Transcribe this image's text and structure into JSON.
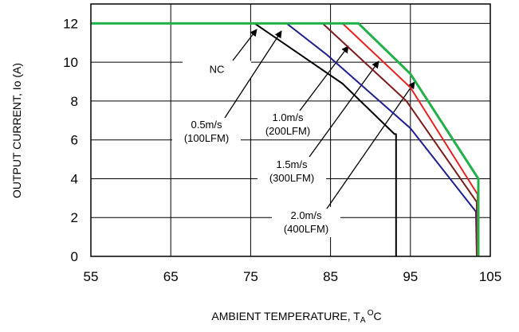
{
  "chart_data": {
    "type": "line",
    "xlabel": "AMBIENT TEMPERATURE, TA OC",
    "ylabel": "OUTPUT CURRENT, Io (A)",
    "xlim": [
      55,
      105
    ],
    "ylim": [
      0,
      13
    ],
    "x_ticks": [
      "55",
      "65",
      "75",
      "85",
      "95",
      "105"
    ],
    "y_ticks": [
      "0",
      "2",
      "4",
      "6",
      "8",
      "10",
      "12"
    ],
    "grid": true,
    "series": [
      {
        "name": "NC",
        "color": "#000000",
        "x": [
          55,
          75.5,
          86.5,
          93,
          93.2,
          93.2
        ],
        "y": [
          12,
          12,
          8.9,
          6.3,
          6.3,
          0
        ]
      },
      {
        "name": "0.5m/s (100LFM)",
        "color": "#1f1f8f",
        "x": [
          55,
          79.5,
          84.5,
          95,
          103.2,
          103.3
        ],
        "y": [
          12,
          12,
          10.4,
          6.6,
          2.3,
          0
        ]
      },
      {
        "name": "1.0m/s (200LFM)",
        "color": "#7b1c1c",
        "x": [
          55,
          84,
          94.5,
          103.3,
          103.3
        ],
        "y": [
          12,
          12,
          8.0,
          2.8,
          0
        ]
      },
      {
        "name": "1.5m/s (300LFM)",
        "color": "#e52222",
        "x": [
          55,
          86.5,
          95,
          103.4,
          103.4
        ],
        "y": [
          12,
          12,
          8.7,
          3.2,
          0
        ]
      },
      {
        "name": "2.0m/s (400LFM)",
        "color": "#22b04a",
        "x": [
          55,
          88.5,
          95,
          103.5,
          103.5
        ],
        "y": [
          12,
          12,
          9.4,
          4.0,
          0
        ]
      }
    ],
    "annotations": [
      {
        "lines": [
          "NC"
        ],
        "series": 0
      },
      {
        "lines": [
          "0.5m/s",
          "(100LFM)"
        ],
        "series": 1
      },
      {
        "lines": [
          "1.0m/s",
          "(200LFM)"
        ],
        "series": 2
      },
      {
        "lines": [
          "1.5m/s",
          "(300LFM)"
        ],
        "series": 3
      },
      {
        "lines": [
          "2.0m/s",
          "(400LFM)"
        ],
        "series": 4
      }
    ]
  }
}
